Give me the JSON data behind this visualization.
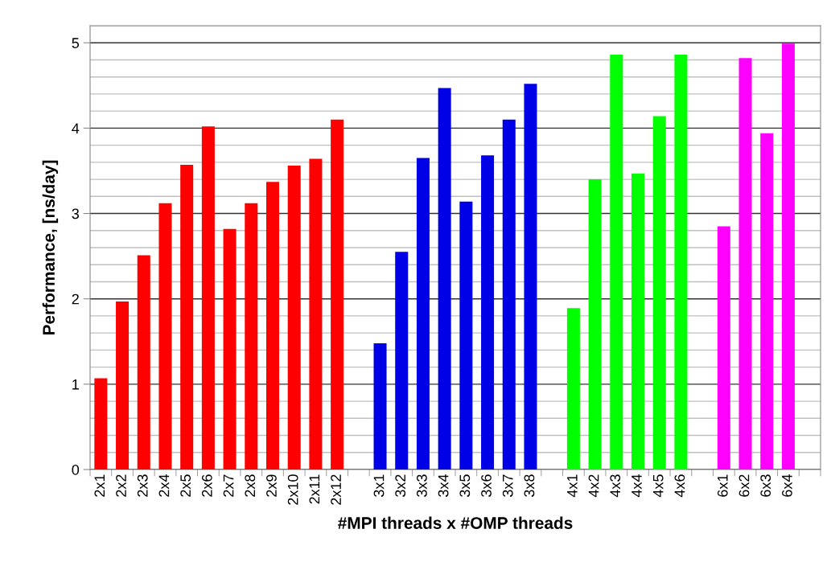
{
  "chart_data": {
    "type": "bar",
    "xlabel": "#MPI threads x #OMP threads",
    "ylabel": "Performance, [ns/day]",
    "categories": [
      "2x1",
      "2x2",
      "2x3",
      "2x4",
      "2x5",
      "2x6",
      "2x7",
      "2x8",
      "2x9",
      "2x10",
      "2x11",
      "2x12",
      null,
      "3x1",
      "3x2",
      "3x3",
      "3x4",
      "3x5",
      "3x6",
      "3x7",
      "3x8",
      null,
      "4x1",
      "4x2",
      "4x3",
      "4x4",
      "4x5",
      "4x6",
      null,
      "6x1",
      "6x2",
      "6x3",
      "6x4",
      null
    ],
    "values": [
      1.07,
      1.97,
      2.51,
      3.12,
      3.57,
      4.02,
      2.82,
      3.12,
      3.37,
      3.56,
      3.64,
      4.1,
      null,
      1.48,
      2.55,
      3.65,
      4.47,
      3.14,
      3.68,
      4.1,
      4.52,
      null,
      1.89,
      3.4,
      4.86,
      3.47,
      4.14,
      4.86,
      null,
      2.85,
      4.82,
      3.94,
      4.99,
      null
    ],
    "colors": [
      "#ff0000",
      "#ff0000",
      "#ff0000",
      "#ff0000",
      "#ff0000",
      "#ff0000",
      "#ff0000",
      "#ff0000",
      "#ff0000",
      "#ff0000",
      "#ff0000",
      "#ff0000",
      null,
      "#0000e6",
      "#0000e6",
      "#0000e6",
      "#0000e6",
      "#0000e6",
      "#0000e6",
      "#0000e6",
      "#0000e6",
      null,
      "#00ff00",
      "#00ff00",
      "#00ff00",
      "#00ff00",
      "#00ff00",
      "#00ff00",
      null,
      "#ff00ff",
      "#ff00ff",
      "#ff00ff",
      "#ff00ff",
      null
    ],
    "ylim": [
      0,
      5.2
    ],
    "yticks": [
      0,
      1,
      2,
      3,
      4,
      5
    ],
    "grid": "y"
  }
}
